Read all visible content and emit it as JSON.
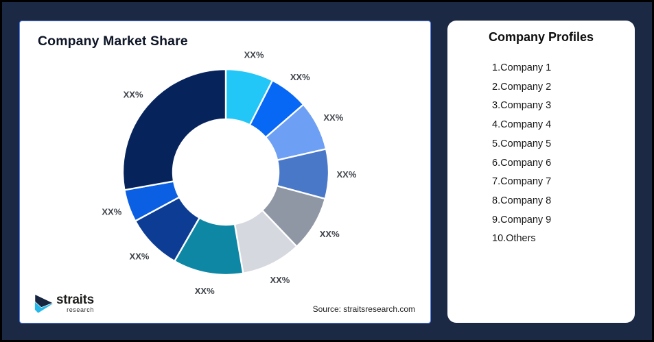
{
  "theme": {
    "background": "#1c2944",
    "frame_border": "#000000",
    "panel_border": "#4f7fe8",
    "panel_background": "#ffffff"
  },
  "market_share_panel": {
    "title": "Company Market Share",
    "source_note": "Source: straitsresearch.com",
    "logo": {
      "wordmark": "straits",
      "subtext": "research",
      "color_navy": "#16243f",
      "color_cyan": "#27b7e8"
    }
  },
  "profiles_panel": {
    "title": "Company Profiles",
    "items": [
      "1.Company 1",
      "2.Company 2",
      "3.Company 3",
      "4.Company 4",
      "5.Company 5",
      "6.Company 6",
      "7.Company 7",
      "8.Company 8",
      "9.Company 9",
      "10.Others"
    ]
  },
  "chart_data": {
    "type": "pie",
    "subtype": "donut",
    "title": "Company Market Share",
    "start_angle_deg": 0,
    "clockwise": true,
    "inner_radius_ratio": 0.51,
    "separator_color": "#ffffff",
    "label_color": "#3f444b",
    "segments": [
      {
        "index": 1,
        "label": "XX%",
        "percent": 7.5,
        "color": "#22c6f7"
      },
      {
        "index": 2,
        "label": "XX%",
        "percent": 6.1,
        "color": "#0768f5"
      },
      {
        "index": 3,
        "label": "XX%",
        "percent": 7.8,
        "color": "#6d9ff4"
      },
      {
        "index": 4,
        "label": "XX%",
        "percent": 7.8,
        "color": "#4a78c9"
      },
      {
        "index": 5,
        "label": "XX%",
        "percent": 8.7,
        "color": "#8f97a4"
      },
      {
        "index": 6,
        "label": "XX%",
        "percent": 9.4,
        "color": "#d5d8de"
      },
      {
        "index": 7,
        "label": "XX%",
        "percent": 11.0,
        "color": "#0e87a5"
      },
      {
        "index": 8,
        "label": "XX%",
        "percent": 8.8,
        "color": "#0c3c94"
      },
      {
        "index": 9,
        "label": "XX%",
        "percent": 5.1,
        "color": "#0b5fe3"
      },
      {
        "index": 10,
        "label": "XX%",
        "percent": 27.8,
        "color": "#06235c"
      }
    ]
  }
}
